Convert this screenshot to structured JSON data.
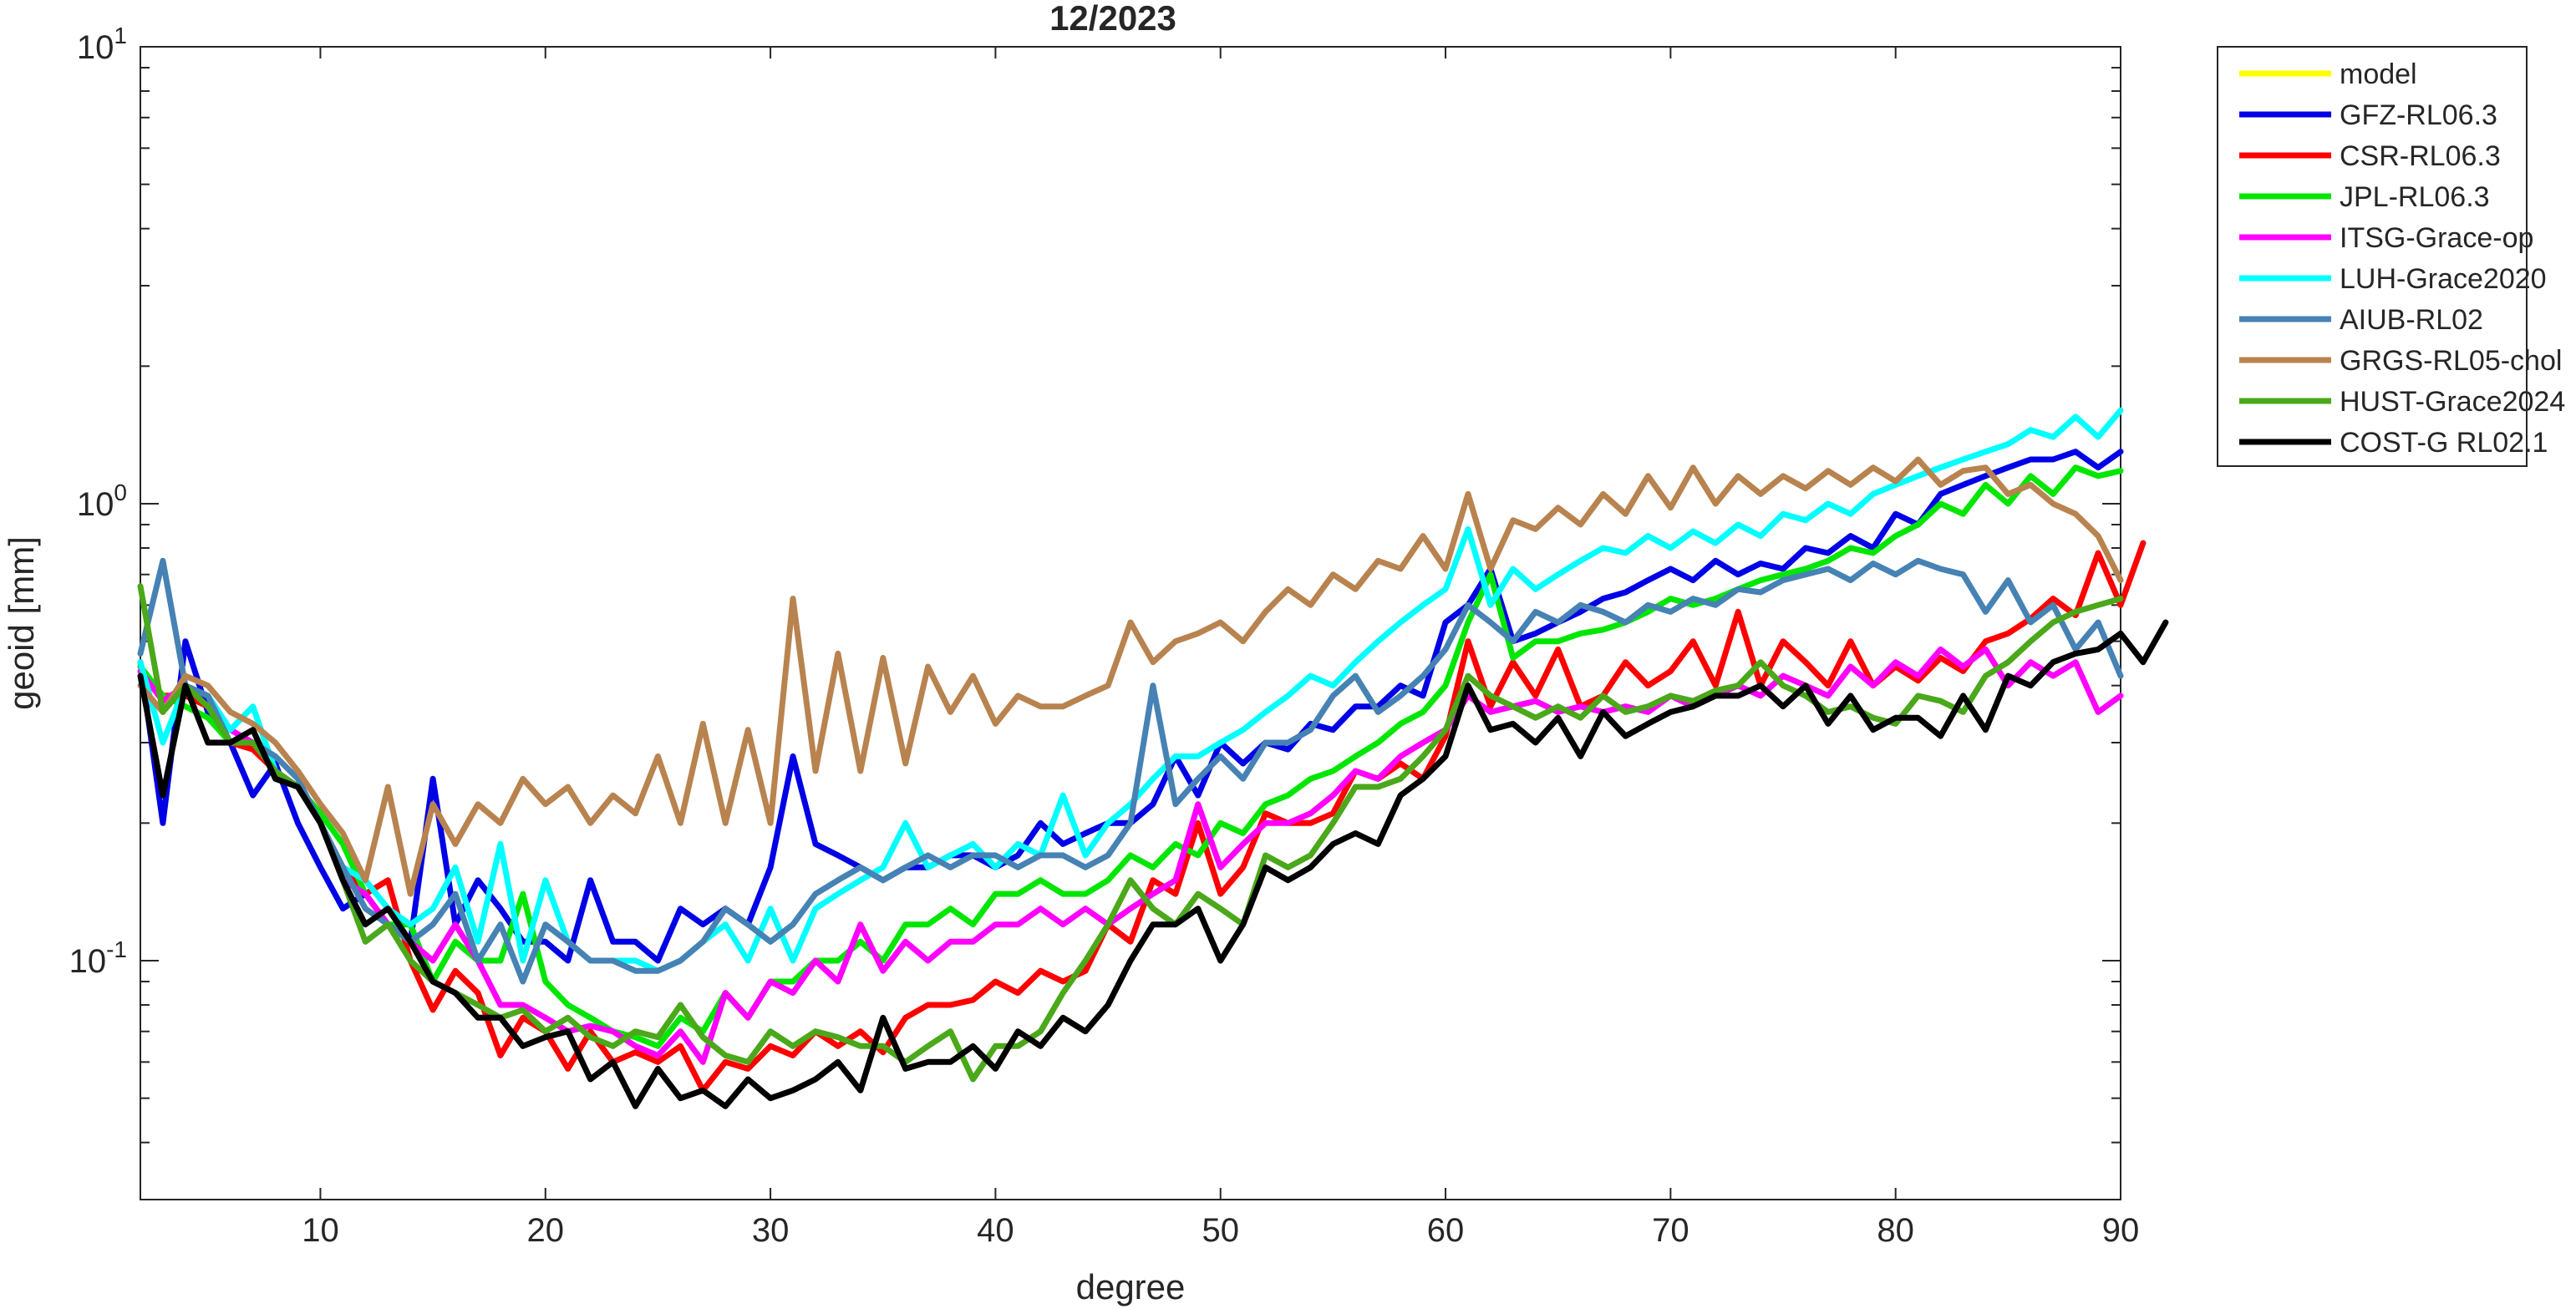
{
  "chart_data": {
    "type": "line",
    "title": "12/2023",
    "xlabel": "degree",
    "ylabel": "geoid [mm]",
    "xlim": [
      2,
      90
    ],
    "ylim": [
      0.03,
      10
    ],
    "yscale": "log",
    "grid": false,
    "legend_position": "outside-right-top",
    "x_ticks": [
      10,
      20,
      30,
      40,
      50,
      60,
      70,
      80,
      90
    ],
    "x_tick_labels": [
      "10",
      "20",
      "30",
      "40",
      "50",
      "60",
      "70",
      "80",
      "90"
    ],
    "y_ticks": [
      0.1,
      1,
      10
    ],
    "y_tick_labels": [
      {
        "base": "10",
        "exp": "-1"
      },
      {
        "base": "10",
        "exp": "0"
      },
      {
        "base": "10",
        "exp": "1"
      }
    ],
    "x_start": 2,
    "series": [
      {
        "name": "model",
        "color": "#ffff00",
        "values": []
      },
      {
        "name": "GFZ-RL06.3",
        "color": "#0000e6",
        "values": [
          0.45,
          0.2,
          0.5,
          0.35,
          0.3,
          0.23,
          0.27,
          0.2,
          0.16,
          0.13,
          0.14,
          0.12,
          0.11,
          0.25,
          0.12,
          0.15,
          0.13,
          0.11,
          0.11,
          0.1,
          0.15,
          0.11,
          0.11,
          0.1,
          0.13,
          0.12,
          0.13,
          0.12,
          0.16,
          0.28,
          0.18,
          0.17,
          0.16,
          0.15,
          0.16,
          0.16,
          0.17,
          0.17,
          0.16,
          0.17,
          0.2,
          0.18,
          0.19,
          0.2,
          0.2,
          0.22,
          0.28,
          0.23,
          0.3,
          0.27,
          0.3,
          0.29,
          0.33,
          0.32,
          0.36,
          0.36,
          0.4,
          0.38,
          0.55,
          0.6,
          0.72,
          0.5,
          0.52,
          0.55,
          0.58,
          0.62,
          0.64,
          0.68,
          0.72,
          0.68,
          0.75,
          0.7,
          0.74,
          0.72,
          0.8,
          0.78,
          0.85,
          0.8,
          0.95,
          0.9,
          1.05,
          1.1,
          1.15,
          1.2,
          1.25,
          1.25,
          1.3,
          1.2,
          1.3
        ]
      },
      {
        "name": "CSR-RL06.3",
        "color": "#ff0000",
        "values": [
          0.44,
          0.38,
          0.38,
          0.36,
          0.3,
          0.29,
          0.26,
          0.24,
          0.2,
          0.16,
          0.14,
          0.15,
          0.1,
          0.078,
          0.095,
          0.085,
          0.062,
          0.075,
          0.07,
          0.058,
          0.07,
          0.06,
          0.063,
          0.06,
          0.065,
          0.052,
          0.06,
          0.058,
          0.065,
          0.062,
          0.07,
          0.065,
          0.07,
          0.063,
          0.075,
          0.08,
          0.08,
          0.082,
          0.09,
          0.085,
          0.095,
          0.09,
          0.095,
          0.12,
          0.11,
          0.15,
          0.14,
          0.2,
          0.14,
          0.16,
          0.21,
          0.2,
          0.2,
          0.21,
          0.26,
          0.25,
          0.27,
          0.25,
          0.31,
          0.5,
          0.36,
          0.45,
          0.38,
          0.48,
          0.36,
          0.38,
          0.45,
          0.4,
          0.43,
          0.5,
          0.4,
          0.58,
          0.4,
          0.5,
          0.45,
          0.4,
          0.5,
          0.4,
          0.44,
          0.41,
          0.46,
          0.43,
          0.5,
          0.52,
          0.56,
          0.62,
          0.57,
          0.78,
          0.6,
          0.82
        ]
      },
      {
        "name": "JPL-RL06.3",
        "color": "#00e600",
        "values": [
          0.44,
          0.38,
          0.36,
          0.34,
          0.3,
          0.3,
          0.26,
          0.24,
          0.21,
          0.18,
          0.14,
          0.12,
          0.12,
          0.09,
          0.11,
          0.1,
          0.1,
          0.14,
          0.09,
          0.08,
          0.075,
          0.07,
          0.068,
          0.065,
          0.075,
          0.07,
          0.085,
          0.075,
          0.09,
          0.09,
          0.1,
          0.1,
          0.11,
          0.1,
          0.12,
          0.12,
          0.13,
          0.12,
          0.14,
          0.14,
          0.15,
          0.14,
          0.14,
          0.15,
          0.17,
          0.16,
          0.18,
          0.17,
          0.2,
          0.19,
          0.22,
          0.23,
          0.25,
          0.26,
          0.28,
          0.3,
          0.33,
          0.35,
          0.4,
          0.55,
          0.7,
          0.46,
          0.5,
          0.5,
          0.52,
          0.53,
          0.55,
          0.58,
          0.62,
          0.6,
          0.62,
          0.65,
          0.68,
          0.7,
          0.72,
          0.75,
          0.8,
          0.78,
          0.85,
          0.9,
          1.0,
          0.95,
          1.1,
          1.0,
          1.15,
          1.05,
          1.2,
          1.15,
          1.18
        ]
      },
      {
        "name": "ITSG-Grace-op",
        "color": "#ff00ff",
        "values": [
          0.43,
          0.37,
          0.4,
          0.38,
          0.32,
          0.3,
          0.26,
          0.24,
          0.2,
          0.15,
          0.14,
          0.12,
          0.11,
          0.1,
          0.12,
          0.1,
          0.08,
          0.08,
          0.075,
          0.07,
          0.072,
          0.07,
          0.065,
          0.062,
          0.07,
          0.06,
          0.085,
          0.075,
          0.09,
          0.085,
          0.1,
          0.09,
          0.12,
          0.095,
          0.11,
          0.1,
          0.11,
          0.11,
          0.12,
          0.12,
          0.13,
          0.12,
          0.13,
          0.12,
          0.13,
          0.14,
          0.15,
          0.22,
          0.16,
          0.18,
          0.2,
          0.2,
          0.21,
          0.23,
          0.26,
          0.25,
          0.28,
          0.3,
          0.32,
          0.38,
          0.35,
          0.36,
          0.37,
          0.35,
          0.36,
          0.35,
          0.36,
          0.35,
          0.38,
          0.36,
          0.38,
          0.4,
          0.38,
          0.42,
          0.4,
          0.38,
          0.44,
          0.4,
          0.45,
          0.42,
          0.48,
          0.44,
          0.48,
          0.4,
          0.45,
          0.42,
          0.45,
          0.35,
          0.38
        ]
      },
      {
        "name": "LUH-Grace2020",
        "color": "#00ffff",
        "values": [
          0.45,
          0.3,
          0.4,
          0.38,
          0.32,
          0.36,
          0.26,
          0.24,
          0.2,
          0.16,
          0.15,
          0.13,
          0.12,
          0.13,
          0.16,
          0.11,
          0.18,
          0.1,
          0.15,
          0.11,
          0.1,
          0.1,
          0.1,
          0.095,
          0.1,
          0.11,
          0.12,
          0.1,
          0.13,
          0.1,
          0.13,
          0.14,
          0.15,
          0.16,
          0.2,
          0.16,
          0.17,
          0.18,
          0.16,
          0.18,
          0.17,
          0.23,
          0.17,
          0.2,
          0.22,
          0.25,
          0.28,
          0.28,
          0.3,
          0.32,
          0.35,
          0.38,
          0.42,
          0.4,
          0.45,
          0.5,
          0.55,
          0.6,
          0.65,
          0.88,
          0.6,
          0.72,
          0.65,
          0.7,
          0.75,
          0.8,
          0.78,
          0.85,
          0.8,
          0.87,
          0.82,
          0.9,
          0.85,
          0.95,
          0.92,
          1.0,
          0.95,
          1.05,
          1.1,
          1.15,
          1.2,
          1.25,
          1.3,
          1.35,
          1.45,
          1.4,
          1.55,
          1.4,
          1.6
        ]
      },
      {
        "name": "AIUB-RL02",
        "color": "#4682b4",
        "values": [
          0.47,
          0.75,
          0.4,
          0.38,
          0.3,
          0.3,
          0.28,
          0.25,
          0.2,
          0.16,
          0.13,
          0.12,
          0.11,
          0.12,
          0.14,
          0.1,
          0.12,
          0.09,
          0.12,
          0.11,
          0.1,
          0.1,
          0.095,
          0.095,
          0.1,
          0.11,
          0.13,
          0.12,
          0.11,
          0.12,
          0.14,
          0.15,
          0.16,
          0.15,
          0.16,
          0.17,
          0.16,
          0.17,
          0.17,
          0.16,
          0.17,
          0.17,
          0.16,
          0.17,
          0.2,
          0.4,
          0.22,
          0.25,
          0.28,
          0.25,
          0.3,
          0.3,
          0.32,
          0.38,
          0.42,
          0.35,
          0.38,
          0.42,
          0.48,
          0.6,
          0.55,
          0.5,
          0.58,
          0.55,
          0.6,
          0.58,
          0.55,
          0.6,
          0.58,
          0.62,
          0.6,
          0.65,
          0.64,
          0.68,
          0.7,
          0.72,
          0.68,
          0.74,
          0.7,
          0.75,
          0.72,
          0.7,
          0.58,
          0.68,
          0.55,
          0.6,
          0.48,
          0.55,
          0.42
        ]
      },
      {
        "name": "GRGS-RL05-chol",
        "color": "#b8834f",
        "values": [
          0.4,
          0.35,
          0.42,
          0.4,
          0.35,
          0.33,
          0.3,
          0.26,
          0.22,
          0.19,
          0.15,
          0.24,
          0.14,
          0.22,
          0.18,
          0.22,
          0.2,
          0.25,
          0.22,
          0.24,
          0.2,
          0.23,
          0.21,
          0.28,
          0.2,
          0.33,
          0.2,
          0.32,
          0.2,
          0.62,
          0.26,
          0.47,
          0.26,
          0.46,
          0.27,
          0.44,
          0.35,
          0.42,
          0.33,
          0.38,
          0.36,
          0.36,
          0.38,
          0.4,
          0.55,
          0.45,
          0.5,
          0.52,
          0.55,
          0.5,
          0.58,
          0.65,
          0.6,
          0.7,
          0.65,
          0.75,
          0.72,
          0.85,
          0.72,
          1.05,
          0.72,
          0.92,
          0.88,
          0.98,
          0.9,
          1.05,
          0.95,
          1.15,
          0.98,
          1.2,
          1.0,
          1.15,
          1.05,
          1.15,
          1.08,
          1.18,
          1.1,
          1.2,
          1.12,
          1.25,
          1.1,
          1.18,
          1.2,
          1.05,
          1.1,
          1.0,
          0.95,
          0.85,
          0.68
        ]
      },
      {
        "name": "HUST-Grace2024",
        "color": "#4aa81a",
        "values": [
          0.66,
          0.35,
          0.4,
          0.36,
          0.3,
          0.3,
          0.26,
          0.24,
          0.2,
          0.15,
          0.11,
          0.12,
          0.1,
          0.09,
          0.085,
          0.08,
          0.075,
          0.078,
          0.07,
          0.075,
          0.068,
          0.065,
          0.07,
          0.068,
          0.08,
          0.068,
          0.062,
          0.06,
          0.07,
          0.065,
          0.07,
          0.068,
          0.065,
          0.065,
          0.06,
          0.065,
          0.07,
          0.055,
          0.065,
          0.065,
          0.07,
          0.085,
          0.1,
          0.12,
          0.15,
          0.13,
          0.12,
          0.14,
          0.13,
          0.12,
          0.17,
          0.16,
          0.17,
          0.2,
          0.24,
          0.24,
          0.25,
          0.28,
          0.32,
          0.42,
          0.38,
          0.36,
          0.34,
          0.36,
          0.34,
          0.38,
          0.35,
          0.36,
          0.38,
          0.37,
          0.39,
          0.4,
          0.45,
          0.4,
          0.38,
          0.35,
          0.36,
          0.34,
          0.33,
          0.38,
          0.37,
          0.35,
          0.42,
          0.45,
          0.5,
          0.55,
          0.58,
          0.6,
          0.62
        ]
      },
      {
        "name": "COST-G RL02.1",
        "color": "#000000",
        "values": [
          0.42,
          0.23,
          0.4,
          0.3,
          0.3,
          0.32,
          0.25,
          0.24,
          0.2,
          0.15,
          0.12,
          0.13,
          0.11,
          0.09,
          0.085,
          0.075,
          0.075,
          0.065,
          0.068,
          0.07,
          0.055,
          0.06,
          0.048,
          0.058,
          0.05,
          0.052,
          0.048,
          0.055,
          0.05,
          0.052,
          0.055,
          0.06,
          0.052,
          0.075,
          0.058,
          0.06,
          0.06,
          0.065,
          0.058,
          0.07,
          0.065,
          0.075,
          0.07,
          0.08,
          0.1,
          0.12,
          0.12,
          0.13,
          0.1,
          0.12,
          0.16,
          0.15,
          0.16,
          0.18,
          0.19,
          0.18,
          0.23,
          0.25,
          0.28,
          0.4,
          0.32,
          0.33,
          0.3,
          0.34,
          0.28,
          0.35,
          0.31,
          0.33,
          0.35,
          0.36,
          0.38,
          0.38,
          0.4,
          0.36,
          0.4,
          0.33,
          0.38,
          0.32,
          0.34,
          0.34,
          0.31,
          0.38,
          0.32,
          0.42,
          0.4,
          0.45,
          0.47,
          0.48,
          0.52,
          0.45,
          0.55
        ]
      }
    ]
  }
}
